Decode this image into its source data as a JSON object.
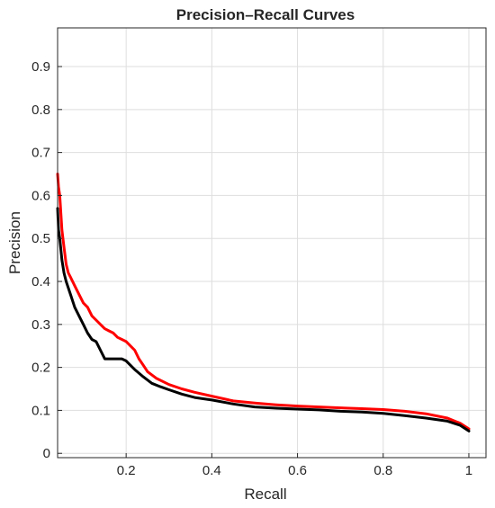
{
  "chart_data": {
    "type": "line",
    "title": "Precision–Recall Curves",
    "xlabel": "Recall",
    "ylabel": "Precision",
    "xlim": [
      0.04,
      1.04
    ],
    "ylim": [
      -0.01,
      0.99
    ],
    "xticks": [
      0.2,
      0.4,
      0.6,
      0.8,
      1.0
    ],
    "xtick_labels": [
      "0.2",
      "0.4",
      "0.6",
      "0.8",
      "1"
    ],
    "yticks": [
      0,
      0.1,
      0.2,
      0.3,
      0.4,
      0.5,
      0.6,
      0.7,
      0.8,
      0.9
    ],
    "ytick_labels": [
      "0",
      "0.1",
      "0.2",
      "0.3",
      "0.4",
      "0.5",
      "0.6",
      "0.7",
      "0.8",
      "0.9"
    ],
    "grid": true,
    "series": [
      {
        "color": "#ff0000",
        "x": [
          0.04,
          0.042,
          0.045,
          0.05,
          0.055,
          0.06,
          0.065,
          0.07,
          0.08,
          0.09,
          0.1,
          0.11,
          0.12,
          0.13,
          0.14,
          0.15,
          0.16,
          0.17,
          0.18,
          0.19,
          0.2,
          0.21,
          0.22,
          0.23,
          0.24,
          0.25,
          0.27,
          0.3,
          0.33,
          0.36,
          0.4,
          0.45,
          0.5,
          0.55,
          0.6,
          0.65,
          0.7,
          0.75,
          0.8,
          0.85,
          0.9,
          0.95,
          0.98,
          1.0
        ],
        "y": [
          0.65,
          0.62,
          0.6,
          0.52,
          0.48,
          0.44,
          0.42,
          0.41,
          0.39,
          0.37,
          0.35,
          0.34,
          0.32,
          0.31,
          0.3,
          0.29,
          0.285,
          0.28,
          0.27,
          0.265,
          0.26,
          0.25,
          0.24,
          0.22,
          0.205,
          0.19,
          0.175,
          0.16,
          0.15,
          0.142,
          0.133,
          0.122,
          0.117,
          0.113,
          0.11,
          0.108,
          0.106,
          0.104,
          0.102,
          0.098,
          0.092,
          0.082,
          0.07,
          0.057
        ]
      },
      {
        "color": "#000000",
        "x": [
          0.04,
          0.042,
          0.045,
          0.05,
          0.055,
          0.06,
          0.07,
          0.08,
          0.09,
          0.1,
          0.11,
          0.12,
          0.13,
          0.14,
          0.15,
          0.16,
          0.17,
          0.18,
          0.19,
          0.2,
          0.21,
          0.22,
          0.24,
          0.26,
          0.28,
          0.3,
          0.33,
          0.36,
          0.4,
          0.45,
          0.5,
          0.55,
          0.6,
          0.65,
          0.7,
          0.75,
          0.8,
          0.85,
          0.9,
          0.95,
          0.98,
          1.0
        ],
        "y": [
          0.57,
          0.52,
          0.5,
          0.45,
          0.42,
          0.4,
          0.37,
          0.34,
          0.32,
          0.3,
          0.28,
          0.265,
          0.26,
          0.24,
          0.22,
          0.22,
          0.22,
          0.22,
          0.22,
          0.215,
          0.205,
          0.195,
          0.178,
          0.163,
          0.155,
          0.148,
          0.138,
          0.13,
          0.124,
          0.115,
          0.108,
          0.105,
          0.103,
          0.101,
          0.098,
          0.096,
          0.093,
          0.088,
          0.082,
          0.075,
          0.065,
          0.052
        ]
      }
    ]
  }
}
